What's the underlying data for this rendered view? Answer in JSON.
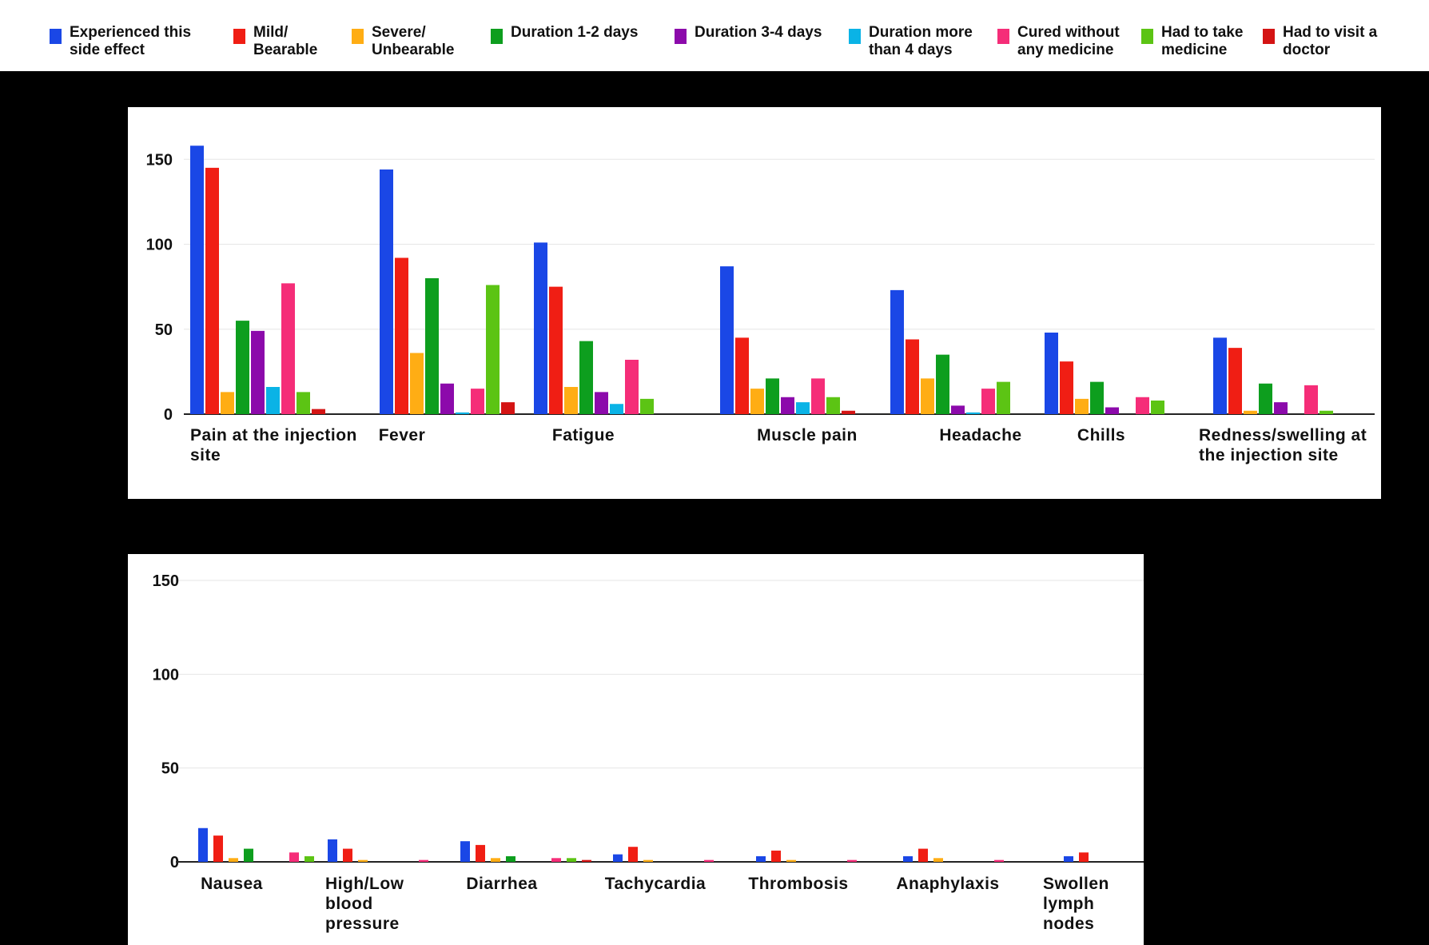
{
  "legend": [
    {
      "label": "Experienced this\nside effect",
      "color": "#1a47e6"
    },
    {
      "label": "Mild/\nBearable",
      "color": "#f01e14"
    },
    {
      "label": "Severe/\nUnbearable",
      "color": "#ffad14"
    },
    {
      "label": "Duration 1-2 days",
      "color": "#0d9e1e"
    },
    {
      "label": "Duration 3-4 days",
      "color": "#8c0aab"
    },
    {
      "label": "Duration more\nthan 4 days",
      "color": "#0ab3e6"
    },
    {
      "label": "Cured without\nany medicine",
      "color": "#f52d78"
    },
    {
      "label": "Had to take\nmedicine",
      "color": "#5cc414"
    },
    {
      "label": "Had to visit a\ndoctor",
      "color": "#d41414"
    }
  ],
  "chart_data": [
    {
      "type": "bar",
      "ylim": [
        0,
        160
      ],
      "yticks": [
        "0",
        "50",
        "100",
        "150"
      ],
      "legend_position": "top",
      "grid": true,
      "categories": [
        "Pain at the injection site",
        "Fever",
        "Fatigue",
        "Muscle pain",
        "Headache",
        "Chills",
        "Redness/swelling at the injection site"
      ],
      "series": [
        {
          "name": "Experienced this side effect",
          "values": [
            158,
            144,
            101,
            87,
            73,
            48,
            45
          ]
        },
        {
          "name": "Mild/ Bearable",
          "values": [
            145,
            92,
            75,
            45,
            44,
            31,
            39
          ]
        },
        {
          "name": "Severe/ Unbearable",
          "values": [
            13,
            36,
            16,
            15,
            21,
            9,
            2
          ]
        },
        {
          "name": "Duration 1-2 days",
          "values": [
            55,
            80,
            43,
            21,
            35,
            19,
            18
          ]
        },
        {
          "name": "Duration 3-4 days",
          "values": [
            49,
            18,
            13,
            10,
            5,
            4,
            7
          ]
        },
        {
          "name": "Duration more than 4 days",
          "values": [
            16,
            1,
            6,
            7,
            1,
            0,
            0
          ]
        },
        {
          "name": "Cured without any medicine",
          "values": [
            77,
            15,
            32,
            21,
            15,
            10,
            17
          ]
        },
        {
          "name": "Had to take medicine",
          "values": [
            13,
            76,
            9,
            10,
            19,
            8,
            2
          ]
        },
        {
          "name": "Had to visit a doctor",
          "values": [
            3,
            7,
            0,
            2,
            0,
            0,
            0
          ]
        }
      ]
    },
    {
      "type": "bar",
      "ylim": [
        0,
        150
      ],
      "yticks": [
        "0",
        "50",
        "100",
        "150"
      ],
      "grid": true,
      "categories": [
        "Nausea",
        "High/Low blood pressure",
        "Diarrhea",
        "Tachycardia",
        "Thrombosis",
        "Anaphylaxis",
        "Swollen lymph nodes"
      ],
      "series": [
        {
          "name": "Experienced this side effect",
          "values": [
            18,
            12,
            11,
            4,
            3,
            3,
            3
          ]
        },
        {
          "name": "Mild/ Bearable",
          "values": [
            14,
            7,
            9,
            8,
            6,
            7,
            5
          ]
        },
        {
          "name": "Severe/ Unbearable",
          "values": [
            2,
            1,
            2,
            1,
            1,
            2,
            0
          ]
        },
        {
          "name": "Duration 1-2 days",
          "values": [
            7,
            0,
            3,
            0,
            0,
            0,
            0
          ]
        },
        {
          "name": "Duration 3-4 days",
          "values": [
            0,
            0,
            0,
            0,
            0,
            0,
            0
          ]
        },
        {
          "name": "Duration more than 4 days",
          "values": [
            0,
            0,
            0,
            0,
            0,
            0,
            0
          ]
        },
        {
          "name": "Cured without any medicine",
          "values": [
            5,
            1,
            2,
            1,
            1,
            1,
            0
          ]
        },
        {
          "name": "Had to take medicine",
          "values": [
            3,
            0,
            2,
            0,
            0,
            0,
            0
          ]
        },
        {
          "name": "Had to visit a doctor",
          "values": [
            0,
            0,
            1,
            0,
            0,
            0,
            0
          ]
        }
      ]
    }
  ]
}
